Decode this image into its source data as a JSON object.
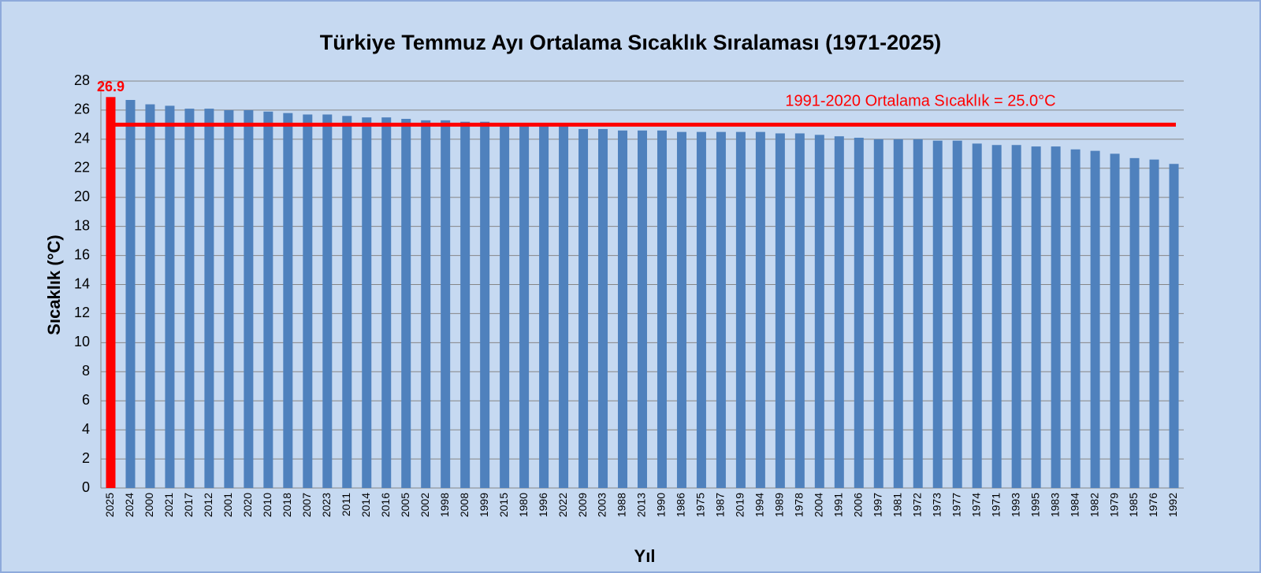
{
  "chart_data": {
    "type": "bar",
    "title": "Türkiye Temmuz Ayı Ortalama Sıcaklık Sıralaması (1971-2025)",
    "xlabel": "Yıl",
    "ylabel": "Sıcaklık (°C)",
    "categories": [
      "2025",
      "2024",
      "2000",
      "2021",
      "2017",
      "2012",
      "2001",
      "2020",
      "2010",
      "2018",
      "2007",
      "2023",
      "2011",
      "2014",
      "2016",
      "2005",
      "2002",
      "1998",
      "2008",
      "1999",
      "2015",
      "1980",
      "1996",
      "2022",
      "2009",
      "2003",
      "1988",
      "2013",
      "1990",
      "1986",
      "1975",
      "1987",
      "2019",
      "1994",
      "1989",
      "1978",
      "2004",
      "1991",
      "2006",
      "1997",
      "1981",
      "1972",
      "1973",
      "1977",
      "1974",
      "1971",
      "1993",
      "1995",
      "1983",
      "1984",
      "1982",
      "1979",
      "1985",
      "1976",
      "1992"
    ],
    "values": [
      26.9,
      26.7,
      26.4,
      26.3,
      26.1,
      26.1,
      26.0,
      26.0,
      25.9,
      25.8,
      25.7,
      25.7,
      25.6,
      25.5,
      25.5,
      25.4,
      25.3,
      25.3,
      25.2,
      25.2,
      25.1,
      25.0,
      25.0,
      24.9,
      24.7,
      24.7,
      24.6,
      24.6,
      24.6,
      24.5,
      24.5,
      24.5,
      24.5,
      24.5,
      24.4,
      24.4,
      24.3,
      24.2,
      24.1,
      24.0,
      24.0,
      24.0,
      23.9,
      23.9,
      23.7,
      23.6,
      23.6,
      23.5,
      23.5,
      23.3,
      23.2,
      23.0,
      22.7,
      22.6,
      22.3
    ],
    "color": "#4f81bd",
    "highlight": "2025",
    "highlight_color": "#ff0000",
    "reference_line": {
      "value": 25.0,
      "label": "1991-2020 Ortalama Sıcaklık = 25.0°C",
      "color": "#ff0000"
    },
    "ylim": [
      0,
      28
    ],
    "yticks": [
      0,
      2,
      4,
      6,
      8,
      10,
      12,
      14,
      16,
      18,
      20,
      22,
      24,
      26,
      28
    ],
    "grid": true
  }
}
